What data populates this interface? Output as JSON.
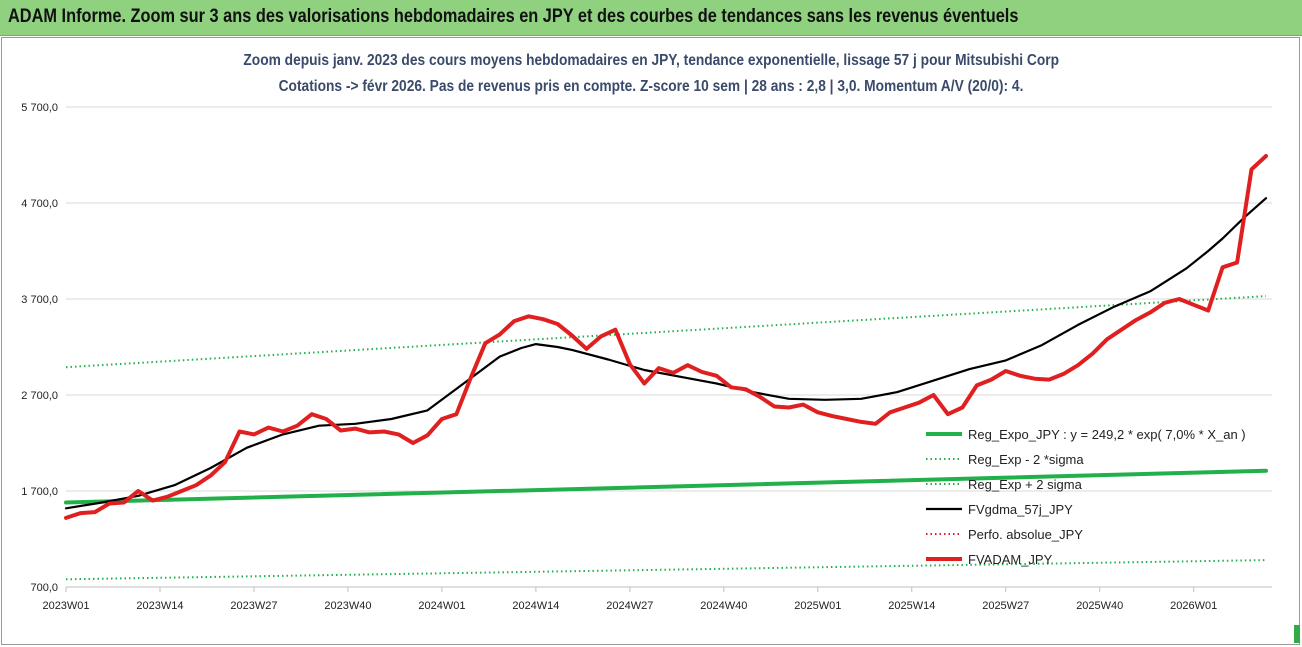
{
  "banner": {
    "title": "ADAM Informe. Zoom sur 3 ans des valorisations hebdomadaires en JPY et des courbes de tendances sans les revenus éventuels"
  },
  "chart_data": {
    "type": "line",
    "title": "Zoom depuis janv. 2023 des cours moyens hebdomadaires en JPY, tendance exponentielle, lissage 57 j pour Mitsubishi Corp",
    "subtitle": "Cotations -> févr 2026.  Pas de revenus pris en compte. Z-score 10 sem | 28 ans : 2,8 | 3,0. Momentum A/V (20/0): 4.",
    "ylim": [
      700,
      5700
    ],
    "y_ticks": [
      "5 700,0",
      "4 700,0",
      "3 700,0",
      "2 700,0",
      "1 700,0",
      "700,0"
    ],
    "y_tick_values": [
      5700,
      4700,
      3700,
      2700,
      1700,
      700
    ],
    "x_ticks": [
      "2023W01",
      "2023W14",
      "2023W27",
      "2023W40",
      "2024W01",
      "2024W14",
      "2024W27",
      "2024W40",
      "2025W01",
      "2025W14",
      "2025W27",
      "2025W40",
      "2026W01"
    ],
    "x_tick_weeks": [
      0,
      13,
      26,
      39,
      52,
      65,
      78,
      91,
      104,
      117,
      130,
      143,
      156
    ],
    "weeks_count": 166,
    "grid": true,
    "legend_position": "bottom-right",
    "series": [
      {
        "name": "Reg_Expo_JPY : y = 249,2 * exp( 7,0% *  X_an )",
        "style": "solid-thick",
        "color": "#22b04b",
        "x": [
          0,
          166
        ],
        "y": [
          1580,
          1910
        ]
      },
      {
        "name": "Reg_Exp - 2 *sigma",
        "style": "dotted",
        "color": "#22b04b",
        "x": [
          0,
          166
        ],
        "y": [
          780,
          980
        ]
      },
      {
        "name": "Reg_Exp + 2 sigma",
        "style": "dotted",
        "color": "#22b04b",
        "x": [
          0,
          166
        ],
        "y": [
          2990,
          3730
        ]
      },
      {
        "name": "FVgdma_57j_JPY",
        "style": "solid",
        "color": "#000000",
        "x": [
          0,
          5,
          10,
          15,
          20,
          25,
          30,
          35,
          40,
          45,
          50,
          55,
          60,
          63,
          65,
          68,
          70,
          75,
          80,
          85,
          90,
          95,
          100,
          105,
          110,
          115,
          120,
          125,
          130,
          135,
          140,
          145,
          150,
          155,
          158,
          160,
          163,
          166
        ],
        "y": [
          1520,
          1580,
          1650,
          1760,
          1940,
          2150,
          2290,
          2380,
          2400,
          2450,
          2540,
          2820,
          3100,
          3190,
          3230,
          3200,
          3170,
          3070,
          2960,
          2890,
          2820,
          2730,
          2660,
          2650,
          2660,
          2730,
          2850,
          2970,
          3060,
          3220,
          3430,
          3620,
          3780,
          4020,
          4200,
          4330,
          4550,
          4750
        ]
      },
      {
        "name": "Perfo. absolue_JPY",
        "style": "dotted",
        "color": "#e02020",
        "x": [],
        "y": []
      },
      {
        "name": "FVADAM_JPY",
        "style": "solid-thick",
        "color": "#e02020",
        "x": [
          0,
          2,
          4,
          6,
          8,
          10,
          12,
          14,
          16,
          18,
          20,
          22,
          24,
          26,
          28,
          30,
          32,
          34,
          36,
          38,
          40,
          42,
          44,
          46,
          48,
          50,
          52,
          54,
          56,
          58,
          60,
          62,
          64,
          66,
          68,
          70,
          72,
          74,
          76,
          78,
          80,
          82,
          84,
          86,
          88,
          90,
          92,
          94,
          96,
          98,
          100,
          102,
          104,
          106,
          108,
          110,
          112,
          114,
          116,
          118,
          120,
          122,
          124,
          126,
          128,
          130,
          132,
          134,
          136,
          138,
          140,
          142,
          144,
          146,
          148,
          150,
          152,
          154,
          156,
          158,
          160,
          162,
          164,
          166
        ],
        "y": [
          1420,
          1470,
          1480,
          1570,
          1580,
          1700,
          1600,
          1640,
          1700,
          1760,
          1860,
          2000,
          2320,
          2290,
          2360,
          2320,
          2380,
          2500,
          2450,
          2330,
          2350,
          2310,
          2320,
          2290,
          2200,
          2280,
          2450,
          2500,
          2880,
          3240,
          3330,
          3470,
          3520,
          3490,
          3440,
          3320,
          3180,
          3310,
          3380,
          3020,
          2820,
          2980,
          2930,
          3010,
          2940,
          2900,
          2780,
          2760,
          2680,
          2580,
          2570,
          2600,
          2520,
          2480,
          2450,
          2420,
          2400,
          2520,
          2570,
          2620,
          2700,
          2500,
          2570,
          2800,
          2860,
          2950,
          2900,
          2870,
          2860,
          2920,
          3010,
          3130,
          3280,
          3380,
          3480,
          3560,
          3660,
          3700,
          3640,
          3580,
          4030,
          4080,
          5050,
          5190
        ]
      }
    ]
  }
}
